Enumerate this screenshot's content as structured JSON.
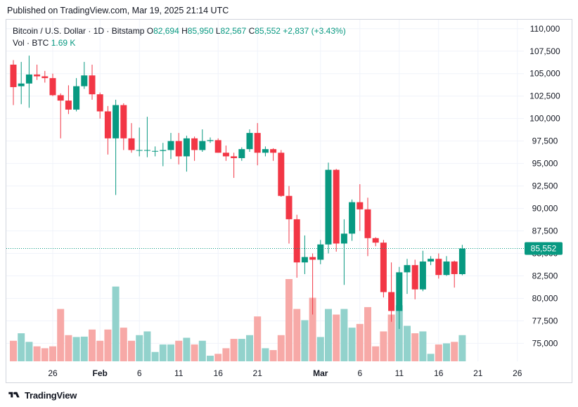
{
  "header": {
    "published": "Published on TradingView.com, Mar 19, 2025 21:14 UTC"
  },
  "legend": {
    "symbol": "Bitcoin / U.S. Dollar · 1D · Bitstamp",
    "o_label": "O",
    "o_value": "82,694",
    "h_label": "H",
    "h_value": "85,950",
    "l_label": "L",
    "l_value": "82,567",
    "c_label": "C",
    "c_value": "85,552",
    "change": "+2,837 (+3.43%)",
    "vol_label": "Vol · BTC",
    "vol_value": "1.69 K"
  },
  "footer": {
    "brand": "TradingView"
  },
  "colors": {
    "up": "#089981",
    "down": "#f23645",
    "up_vol": "#92d2cc",
    "down_vol": "#f7a9a7",
    "grid": "#f0f3fa",
    "axis_text": "#131722"
  },
  "chart_data": {
    "type": "candlestick",
    "price_axis": {
      "ylim": [
        73000,
        111000
      ],
      "ticks": [
        75000,
        77500,
        80000,
        82500,
        85000,
        87500,
        90000,
        92500,
        95000,
        97500,
        100000,
        102500,
        105000,
        107500,
        110000
      ],
      "tick_labels": [
        "75,000",
        "77,500",
        "80,000",
        "82,500",
        "85,000",
        "87,500",
        "90,000",
        "92,500",
        "95,000",
        "97,500",
        "100,000",
        "102,500",
        "105,000",
        "107,500",
        "110,000"
      ],
      "last_price": 85552,
      "last_price_label": "85,552"
    },
    "x_axis": {
      "tick_labels": [
        {
          "label": "26",
          "date": "2025-01-26",
          "bold": false
        },
        {
          "label": "Feb",
          "date": "2025-02-01",
          "bold": true
        },
        {
          "label": "6",
          "date": "2025-02-06",
          "bold": false
        },
        {
          "label": "11",
          "date": "2025-02-11",
          "bold": false
        },
        {
          "label": "16",
          "date": "2025-02-16",
          "bold": false
        },
        {
          "label": "21",
          "date": "2025-02-21",
          "bold": false
        },
        {
          "label": "Mar",
          "date": "2025-03-01",
          "bold": true
        },
        {
          "label": "6",
          "date": "2025-03-06",
          "bold": false
        },
        {
          "label": "11",
          "date": "2025-03-11",
          "bold": false
        },
        {
          "label": "16",
          "date": "2025-03-16",
          "bold": false
        },
        {
          "label": "21",
          "date": "2025-03-21",
          "bold": false
        },
        {
          "label": "26",
          "date": "2025-03-26",
          "bold": false
        }
      ],
      "range": [
        "2025-01-21",
        "2025-03-28"
      ]
    },
    "candles": [
      {
        "date": "2025-01-21",
        "o": 106000,
        "h": 106500,
        "l": 101500,
        "c": 103500,
        "v": 0.55
      },
      {
        "date": "2025-01-22",
        "o": 103600,
        "h": 106300,
        "l": 101600,
        "c": 103900,
        "v": 0.75
      },
      {
        "date": "2025-01-23",
        "o": 103900,
        "h": 107000,
        "l": 101200,
        "c": 104900,
        "v": 0.52
      },
      {
        "date": "2025-01-24",
        "o": 104900,
        "h": 106000,
        "l": 104300,
        "c": 104700,
        "v": 0.4
      },
      {
        "date": "2025-01-25",
        "o": 104700,
        "h": 105300,
        "l": 104000,
        "c": 104500,
        "v": 0.35
      },
      {
        "date": "2025-01-26",
        "o": 104500,
        "h": 105000,
        "l": 102500,
        "c": 102600,
        "v": 0.4
      },
      {
        "date": "2025-01-27",
        "o": 102600,
        "h": 102800,
        "l": 97800,
        "c": 102000,
        "v": 1.4
      },
      {
        "date": "2025-01-28",
        "o": 102000,
        "h": 103700,
        "l": 100500,
        "c": 101000,
        "v": 0.7
      },
      {
        "date": "2025-01-29",
        "o": 101000,
        "h": 104500,
        "l": 100800,
        "c": 103600,
        "v": 0.65
      },
      {
        "date": "2025-01-30",
        "o": 103600,
        "h": 106300,
        "l": 103300,
        "c": 104800,
        "v": 0.66
      },
      {
        "date": "2025-01-31",
        "o": 104800,
        "h": 106000,
        "l": 102100,
        "c": 102700,
        "v": 0.85
      },
      {
        "date": "2025-02-01",
        "o": 102700,
        "h": 102900,
        "l": 100000,
        "c": 100800,
        "v": 0.55
      },
      {
        "date": "2025-02-02",
        "o": 100800,
        "h": 101400,
        "l": 96000,
        "c": 97800,
        "v": 0.85
      },
      {
        "date": "2025-02-03",
        "o": 97800,
        "h": 102100,
        "l": 91500,
        "c": 101500,
        "v": 2.0
      },
      {
        "date": "2025-02-04",
        "o": 101500,
        "h": 101700,
        "l": 96500,
        "c": 97800,
        "v": 0.9
      },
      {
        "date": "2025-02-05",
        "o": 97800,
        "h": 99500,
        "l": 96200,
        "c": 96500,
        "v": 0.55
      },
      {
        "date": "2025-02-06",
        "o": 96500,
        "h": 99000,
        "l": 95800,
        "c": 96500,
        "v": 0.7
      },
      {
        "date": "2025-02-07",
        "o": 96500,
        "h": 100200,
        "l": 95700,
        "c": 96500,
        "v": 0.8
      },
      {
        "date": "2025-02-08",
        "o": 96400,
        "h": 96900,
        "l": 95800,
        "c": 96400,
        "v": 0.25
      },
      {
        "date": "2025-02-09",
        "o": 96400,
        "h": 97300,
        "l": 94700,
        "c": 96500,
        "v": 0.45
      },
      {
        "date": "2025-02-10",
        "o": 96500,
        "h": 98400,
        "l": 95500,
        "c": 97500,
        "v": 0.45
      },
      {
        "date": "2025-02-11",
        "o": 97500,
        "h": 98400,
        "l": 94900,
        "c": 95800,
        "v": 0.55
      },
      {
        "date": "2025-02-12",
        "o": 95800,
        "h": 98100,
        "l": 94100,
        "c": 97800,
        "v": 0.63
      },
      {
        "date": "2025-02-13",
        "o": 97800,
        "h": 98000,
        "l": 95300,
        "c": 96500,
        "v": 0.45
      },
      {
        "date": "2025-02-14",
        "o": 96500,
        "h": 98800,
        "l": 96300,
        "c": 97500,
        "v": 0.55
      },
      {
        "date": "2025-02-15",
        "o": 97500,
        "h": 97900,
        "l": 97300,
        "c": 97600,
        "v": 0.15
      },
      {
        "date": "2025-02-16",
        "o": 97600,
        "h": 97800,
        "l": 96200,
        "c": 96200,
        "v": 0.2
      },
      {
        "date": "2025-02-17",
        "o": 96200,
        "h": 97000,
        "l": 95300,
        "c": 95800,
        "v": 0.35
      },
      {
        "date": "2025-02-18",
        "o": 95800,
        "h": 96200,
        "l": 93400,
        "c": 95600,
        "v": 0.6
      },
      {
        "date": "2025-02-19",
        "o": 95600,
        "h": 96800,
        "l": 95300,
        "c": 96600,
        "v": 0.6
      },
      {
        "date": "2025-02-20",
        "o": 96600,
        "h": 98800,
        "l": 96300,
        "c": 98400,
        "v": 0.7
      },
      {
        "date": "2025-02-21",
        "o": 98400,
        "h": 99500,
        "l": 94800,
        "c": 96200,
        "v": 1.2
      },
      {
        "date": "2025-02-22",
        "o": 96200,
        "h": 96900,
        "l": 95800,
        "c": 96600,
        "v": 0.35
      },
      {
        "date": "2025-02-23",
        "o": 96600,
        "h": 96700,
        "l": 95300,
        "c": 96200,
        "v": 0.3
      },
      {
        "date": "2025-02-24",
        "o": 96200,
        "h": 96500,
        "l": 91300,
        "c": 91400,
        "v": 0.7
      },
      {
        "date": "2025-02-25",
        "o": 91400,
        "h": 92500,
        "l": 86100,
        "c": 88800,
        "v": 2.2
      },
      {
        "date": "2025-02-26",
        "o": 88800,
        "h": 89300,
        "l": 82300,
        "c": 84000,
        "v": 1.4
      },
      {
        "date": "2025-02-27",
        "o": 84000,
        "h": 87000,
        "l": 82700,
        "c": 84600,
        "v": 1.1
      },
      {
        "date": "2025-02-28",
        "o": 84600,
        "h": 85000,
        "l": 78200,
        "c": 84300,
        "v": 1.7
      },
      {
        "date": "2025-03-01",
        "o": 84300,
        "h": 86500,
        "l": 83800,
        "c": 86000,
        "v": 0.65
      },
      {
        "date": "2025-03-02",
        "o": 86000,
        "h": 95100,
        "l": 85000,
        "c": 94300,
        "v": 1.4
      },
      {
        "date": "2025-03-03",
        "o": 94300,
        "h": 94400,
        "l": 85200,
        "c": 86100,
        "v": 1.25
      },
      {
        "date": "2025-03-04",
        "o": 86100,
        "h": 88800,
        "l": 81500,
        "c": 87200,
        "v": 1.4
      },
      {
        "date": "2025-03-05",
        "o": 87200,
        "h": 91000,
        "l": 86400,
        "c": 90700,
        "v": 0.9
      },
      {
        "date": "2025-03-06",
        "o": 90700,
        "h": 92700,
        "l": 87500,
        "c": 89900,
        "v": 1.0
      },
      {
        "date": "2025-03-07",
        "o": 89900,
        "h": 91200,
        "l": 84700,
        "c": 86700,
        "v": 1.45
      },
      {
        "date": "2025-03-08",
        "o": 86700,
        "h": 86800,
        "l": 85800,
        "c": 86200,
        "v": 0.4
      },
      {
        "date": "2025-03-09",
        "o": 86200,
        "h": 86500,
        "l": 80100,
        "c": 80700,
        "v": 0.8
      },
      {
        "date": "2025-03-10",
        "o": 80700,
        "h": 84000,
        "l": 77400,
        "c": 78600,
        "v": 1.25
      },
      {
        "date": "2025-03-11",
        "o": 78600,
        "h": 83500,
        "l": 76600,
        "c": 82900,
        "v": 1.5
      },
      {
        "date": "2025-03-12",
        "o": 82900,
        "h": 84400,
        "l": 80500,
        "c": 83700,
        "v": 0.95
      },
      {
        "date": "2025-03-13",
        "o": 83700,
        "h": 84300,
        "l": 79900,
        "c": 81000,
        "v": 0.75
      },
      {
        "date": "2025-03-14",
        "o": 81000,
        "h": 85300,
        "l": 80800,
        "c": 84100,
        "v": 0.8
      },
      {
        "date": "2025-03-15",
        "o": 84100,
        "h": 84700,
        "l": 83700,
        "c": 84400,
        "v": 0.2
      },
      {
        "date": "2025-03-16",
        "o": 84400,
        "h": 85000,
        "l": 82200,
        "c": 82600,
        "v": 0.45
      },
      {
        "date": "2025-03-17",
        "o": 82600,
        "h": 84700,
        "l": 82500,
        "c": 84100,
        "v": 0.48
      },
      {
        "date": "2025-03-18",
        "o": 84100,
        "h": 84200,
        "l": 81200,
        "c": 82700,
        "v": 0.52
      },
      {
        "date": "2025-03-19",
        "o": 82694,
        "h": 85950,
        "l": 82567,
        "c": 85552,
        "v": 0.7
      }
    ]
  }
}
